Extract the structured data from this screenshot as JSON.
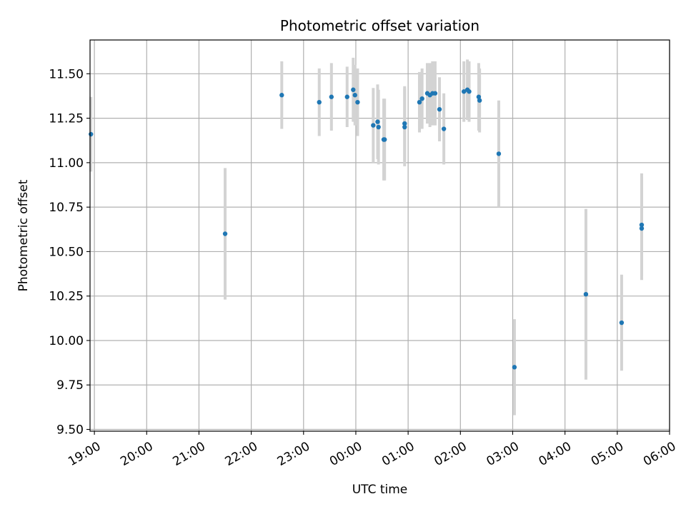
{
  "chart_data": {
    "type": "scatter",
    "title": "Photometric offset variation",
    "xlabel": "UTC time",
    "ylabel": "Photometric offset",
    "grid": true,
    "x_axis_kind": "time",
    "xlim": [
      "18:55",
      "06:00"
    ],
    "ylim": [
      9.49,
      11.69
    ],
    "x_ticks": [
      "19:00",
      "20:00",
      "21:00",
      "22:00",
      "23:00",
      "00:00",
      "01:00",
      "02:00",
      "03:00",
      "04:00",
      "05:00",
      "06:00"
    ],
    "y_ticks": [
      "9.50",
      "9.75",
      "10.00",
      "10.25",
      "10.50",
      "10.75",
      "11.00",
      "11.25",
      "11.50"
    ],
    "colors": {
      "point": "#1f77b4",
      "errorbar": "#d3d3d3",
      "grid": "#b0b0b0"
    },
    "points": [
      {
        "x": "18:56",
        "y": 11.16,
        "err": 0.21
      },
      {
        "x": "21:30",
        "y": 10.6,
        "err": 0.37
      },
      {
        "x": "22:35",
        "y": 11.38,
        "err": 0.19
      },
      {
        "x": "23:18",
        "y": 11.34,
        "err": 0.19
      },
      {
        "x": "23:32",
        "y": 11.37,
        "err": 0.19
      },
      {
        "x": "23:50",
        "y": 11.37,
        "err": 0.17
      },
      {
        "x": "23:57",
        "y": 11.41,
        "err": 0.18
      },
      {
        "x": "23:59",
        "y": 11.38,
        "err": 0.17
      },
      {
        "x": "00:02",
        "y": 11.34,
        "err": 0.19
      },
      {
        "x": "00:20",
        "y": 11.21,
        "err": 0.21
      },
      {
        "x": "00:25",
        "y": 11.23,
        "err": 0.21
      },
      {
        "x": "00:26",
        "y": 11.2,
        "err": 0.21
      },
      {
        "x": "00:32",
        "y": 11.13,
        "err": 0.23
      },
      {
        "x": "00:33",
        "y": 11.13,
        "err": 0.23
      },
      {
        "x": "00:56",
        "y": 11.22,
        "err": 0.21
      },
      {
        "x": "00:56",
        "y": 11.2,
        "err": 0.22
      },
      {
        "x": "01:13",
        "y": 11.34,
        "err": 0.17
      },
      {
        "x": "01:16",
        "y": 11.36,
        "err": 0.17
      },
      {
        "x": "01:22",
        "y": 11.39,
        "err": 0.17
      },
      {
        "x": "01:25",
        "y": 11.38,
        "err": 0.18
      },
      {
        "x": "01:28",
        "y": 11.39,
        "err": 0.18
      },
      {
        "x": "01:31",
        "y": 11.39,
        "err": 0.18
      },
      {
        "x": "01:36",
        "y": 11.3,
        "err": 0.18
      },
      {
        "x": "01:41",
        "y": 11.19,
        "err": 0.2
      },
      {
        "x": "02:04",
        "y": 11.4,
        "err": 0.17
      },
      {
        "x": "02:08",
        "y": 11.41,
        "err": 0.17
      },
      {
        "x": "02:10",
        "y": 11.4,
        "err": 0.17
      },
      {
        "x": "02:21",
        "y": 11.37,
        "err": 0.19
      },
      {
        "x": "02:22",
        "y": 11.35,
        "err": 0.18
      },
      {
        "x": "02:44",
        "y": 11.05,
        "err": 0.3
      },
      {
        "x": "03:02",
        "y": 9.85,
        "err": 0.27
      },
      {
        "x": "04:24",
        "y": 10.26,
        "err": 0.48
      },
      {
        "x": "05:05",
        "y": 10.1,
        "err": 0.27
      },
      {
        "x": "05:28",
        "y": 10.65,
        "err": 0.29
      },
      {
        "x": "05:28",
        "y": 10.63,
        "err": 0.29
      }
    ]
  }
}
